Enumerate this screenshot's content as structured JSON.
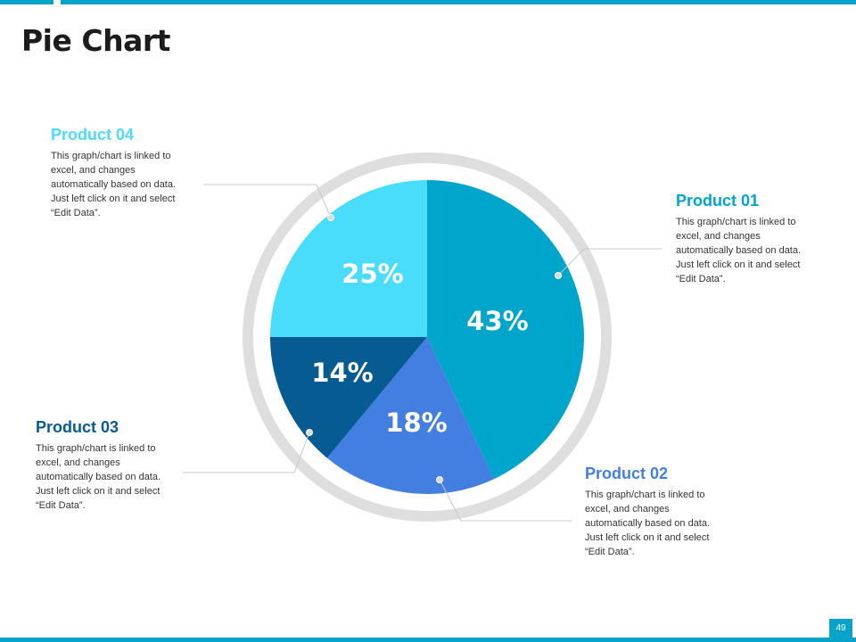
{
  "header": {
    "title": "Pie Chart"
  },
  "footer": {
    "page_number": "49"
  },
  "colors": {
    "accent": "#08a3c9",
    "product01": "#00a5cc",
    "product02": "#437fe0",
    "product03": "#055b92",
    "product04": "#4adcfb",
    "ring": "#dedede",
    "leader": "#c8c8c8"
  },
  "chart_data": {
    "type": "pie",
    "title": "",
    "series": [
      {
        "name": "Product 01",
        "value": 43,
        "label": "43%",
        "color": "#00a5cc"
      },
      {
        "name": "Product 02",
        "value": 18,
        "label": "18%",
        "color": "#437fe0"
      },
      {
        "name": "Product 03",
        "value": 14,
        "label": "14%",
        "color": "#055b92"
      },
      {
        "name": "Product 04",
        "value": 25,
        "label": "25%",
        "color": "#4adcfb"
      }
    ],
    "legend": "callouts around pie"
  },
  "callouts": {
    "p01": {
      "title": "Product 01",
      "text": "This graph/chart is linked to excel, and changes automatically based on data. Just left click on it and select “Edit Data”."
    },
    "p02": {
      "title": "Product 02",
      "text": "This graph/chart is linked to excel, and changes automatically based on data. Just left click on it and select “Edit Data”."
    },
    "p03": {
      "title": "Product 03",
      "text": "This graph/chart is linked to excel, and changes automatically based on data. Just left click on it and select “Edit Data”."
    },
    "p04": {
      "title": "Product 04",
      "text": "This graph/chart is linked to excel, and changes automatically based on data. Just left click on it and select “Edit Data”."
    }
  }
}
